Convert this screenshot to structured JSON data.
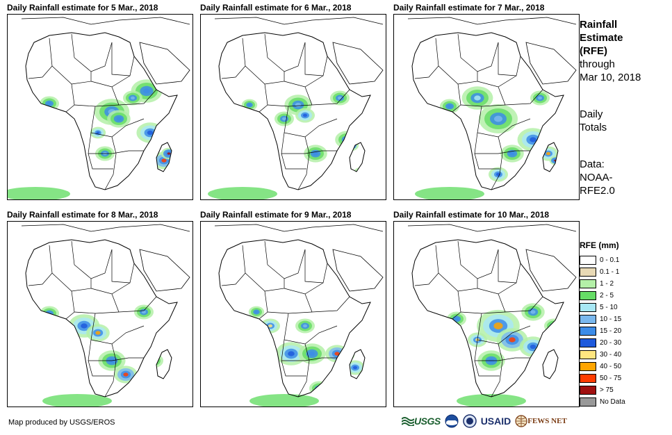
{
  "panels": [
    {
      "title": "Daily Rainfall estimate for 5 Mar., 2018"
    },
    {
      "title": "Daily Rainfall estimate for 6 Mar., 2018"
    },
    {
      "title": "Daily Rainfall estimate for 7 Mar., 2018"
    },
    {
      "title": "Daily Rainfall estimate for 8 Mar., 2018"
    },
    {
      "title": "Daily Rainfall estimate for 9 Mar., 2018"
    },
    {
      "title": "Daily Rainfall estimate for 10 Mar., 2018"
    }
  ],
  "side": {
    "title_lines": [
      "Rainfall",
      "Estimate",
      "(RFE)"
    ],
    "through_lines": [
      "through",
      "Mar 10, 2018"
    ],
    "period_lines": [
      "Daily",
      "Totals"
    ],
    "data_lines": [
      "Data:",
      "NOAA-",
      "RFE2.0"
    ]
  },
  "legend": {
    "title": "RFE (mm)",
    "items": [
      {
        "label": "0 - 0.1",
        "color": "#ffffff"
      },
      {
        "label": "0.1 - 1",
        "color": "#e8d9b5"
      },
      {
        "label": "1 - 2",
        "color": "#b4f0a8"
      },
      {
        "label": "2 - 5",
        "color": "#66dd66"
      },
      {
        "label": "5 - 10",
        "color": "#a8e8f5"
      },
      {
        "label": "10 - 15",
        "color": "#7ab8ee"
      },
      {
        "label": "15 - 20",
        "color": "#3c8ce8"
      },
      {
        "label": "20 - 30",
        "color": "#1e5adc"
      },
      {
        "label": "30 - 40",
        "color": "#ffe680"
      },
      {
        "label": "40 - 50",
        "color": "#ffa500"
      },
      {
        "label": "50 - 75",
        "color": "#ff3c00"
      },
      {
        "label": "> 75",
        "color": "#a01010"
      },
      {
        "label": "No Data",
        "color": "#999999"
      }
    ]
  },
  "credit": "Map produced by USGS/EROS",
  "logos": {
    "usgs": "USGS",
    "usaid": "USAID",
    "fews": "FEWS NET"
  }
}
